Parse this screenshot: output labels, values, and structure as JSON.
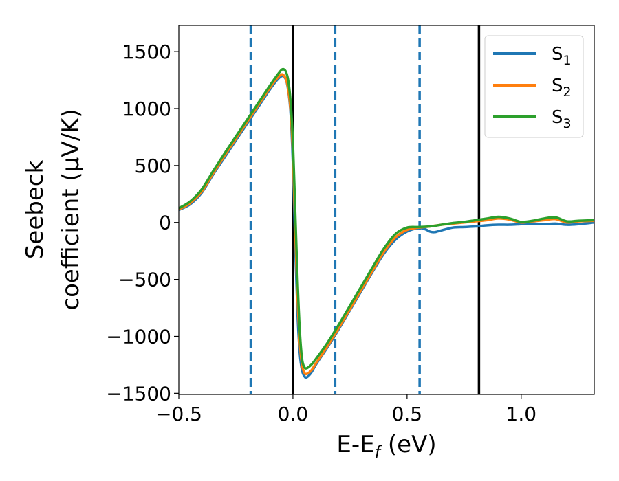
{
  "chart_data": {
    "type": "line",
    "xlabel": {
      "base": "E-E",
      "sub": "f",
      "suffix": " (eV)"
    },
    "ylabel": {
      "line1": "Seebeck",
      "line2": "coefficient  (μV/K)"
    },
    "xlim": [
      -0.5,
      1.32
    ],
    "ylim": [
      -1510,
      1730
    ],
    "x_ticks": [
      -0.5,
      0.0,
      0.5,
      1.0
    ],
    "x_tick_labels": [
      "−0.5",
      "0.0",
      "0.5",
      "1.0"
    ],
    "y_ticks": [
      -1500,
      -1000,
      -500,
      0,
      500,
      1000,
      1500
    ],
    "y_tick_labels": [
      "−1500",
      "−1000",
      "−500",
      "0",
      "500",
      "1000",
      "1500"
    ],
    "grid": false,
    "legend_position": "top-right",
    "vlines_solid": [
      0.0,
      0.815
    ],
    "vlines_dashed": [
      -0.185,
      0.185,
      0.555
    ],
    "vline_solid_color": "#000000",
    "vline_dashed_color": "#1f77b4",
    "series": [
      {
        "name": "S1",
        "legend_base": "S",
        "legend_sub": "1",
        "color": "#1f77b4",
        "x": [
          -0.5,
          -0.45,
          -0.4,
          -0.35,
          -0.3,
          -0.25,
          -0.2,
          -0.15,
          -0.1,
          -0.07,
          -0.05,
          -0.04,
          -0.03,
          -0.02,
          -0.01,
          0.0,
          0.01,
          0.02,
          0.03,
          0.04,
          0.05,
          0.06,
          0.08,
          0.1,
          0.15,
          0.2,
          0.25,
          0.3,
          0.35,
          0.4,
          0.45,
          0.5,
          0.55,
          0.58,
          0.6,
          0.62,
          0.65,
          0.7,
          0.75,
          0.8,
          0.85,
          0.9,
          0.95,
          1.0,
          1.05,
          1.1,
          1.15,
          1.2,
          1.25,
          1.32
        ],
        "y": [
          110,
          160,
          260,
          420,
          570,
          720,
          870,
          1020,
          1170,
          1250,
          1285,
          1280,
          1250,
          1150,
          950,
          500,
          -200,
          -800,
          -1150,
          -1300,
          -1350,
          -1360,
          -1320,
          -1250,
          -1100,
          -940,
          -770,
          -600,
          -430,
          -270,
          -150,
          -80,
          -50,
          -60,
          -80,
          -85,
          -70,
          -45,
          -40,
          -35,
          -25,
          -20,
          -20,
          -15,
          -10,
          -15,
          -10,
          -20,
          -15,
          0
        ]
      },
      {
        "name": "S2",
        "legend_base": "S",
        "legend_sub": "2",
        "color": "#ff7f0e",
        "x": [
          -0.5,
          -0.45,
          -0.4,
          -0.35,
          -0.3,
          -0.25,
          -0.2,
          -0.15,
          -0.1,
          -0.07,
          -0.05,
          -0.04,
          -0.03,
          -0.02,
          -0.01,
          0.0,
          0.01,
          0.02,
          0.03,
          0.04,
          0.05,
          0.06,
          0.08,
          0.1,
          0.15,
          0.2,
          0.25,
          0.3,
          0.35,
          0.4,
          0.45,
          0.5,
          0.55,
          0.6,
          0.65,
          0.7,
          0.75,
          0.8,
          0.85,
          0.9,
          0.95,
          1.0,
          1.05,
          1.1,
          1.15,
          1.2,
          1.25,
          1.32
        ],
        "y": [
          115,
          170,
          270,
          430,
          585,
          735,
          885,
          1035,
          1185,
          1265,
          1300,
          1290,
          1255,
          1160,
          980,
          600,
          -50,
          -650,
          -1050,
          -1250,
          -1320,
          -1330,
          -1300,
          -1240,
          -1090,
          -930,
          -760,
          -590,
          -420,
          -255,
          -130,
          -65,
          -45,
          -35,
          -20,
          -10,
          0,
          10,
          20,
          35,
          25,
          0,
          10,
          20,
          30,
          0,
          10,
          15
        ]
      },
      {
        "name": "S3",
        "legend_base": "S",
        "legend_sub": "3",
        "color": "#2ca02c",
        "x": [
          -0.5,
          -0.45,
          -0.4,
          -0.35,
          -0.3,
          -0.25,
          -0.2,
          -0.15,
          -0.1,
          -0.07,
          -0.05,
          -0.04,
          -0.03,
          -0.02,
          -0.01,
          0.0,
          0.01,
          0.02,
          0.03,
          0.04,
          0.05,
          0.06,
          0.08,
          0.1,
          0.15,
          0.2,
          0.25,
          0.3,
          0.35,
          0.4,
          0.45,
          0.5,
          0.55,
          0.6,
          0.65,
          0.7,
          0.75,
          0.8,
          0.85,
          0.9,
          0.95,
          1.0,
          1.05,
          1.1,
          1.15,
          1.2,
          1.25,
          1.32
        ],
        "y": [
          125,
          185,
          290,
          450,
          605,
          755,
          905,
          1055,
          1205,
          1290,
          1340,
          1345,
          1320,
          1240,
          1050,
          700,
          100,
          -500,
          -950,
          -1200,
          -1270,
          -1280,
          -1250,
          -1200,
          -1060,
          -900,
          -730,
          -560,
          -390,
          -225,
          -100,
          -45,
          -40,
          -35,
          -20,
          -5,
          5,
          20,
          35,
          50,
          35,
          5,
          15,
          35,
          45,
          10,
          15,
          20
        ]
      }
    ]
  }
}
